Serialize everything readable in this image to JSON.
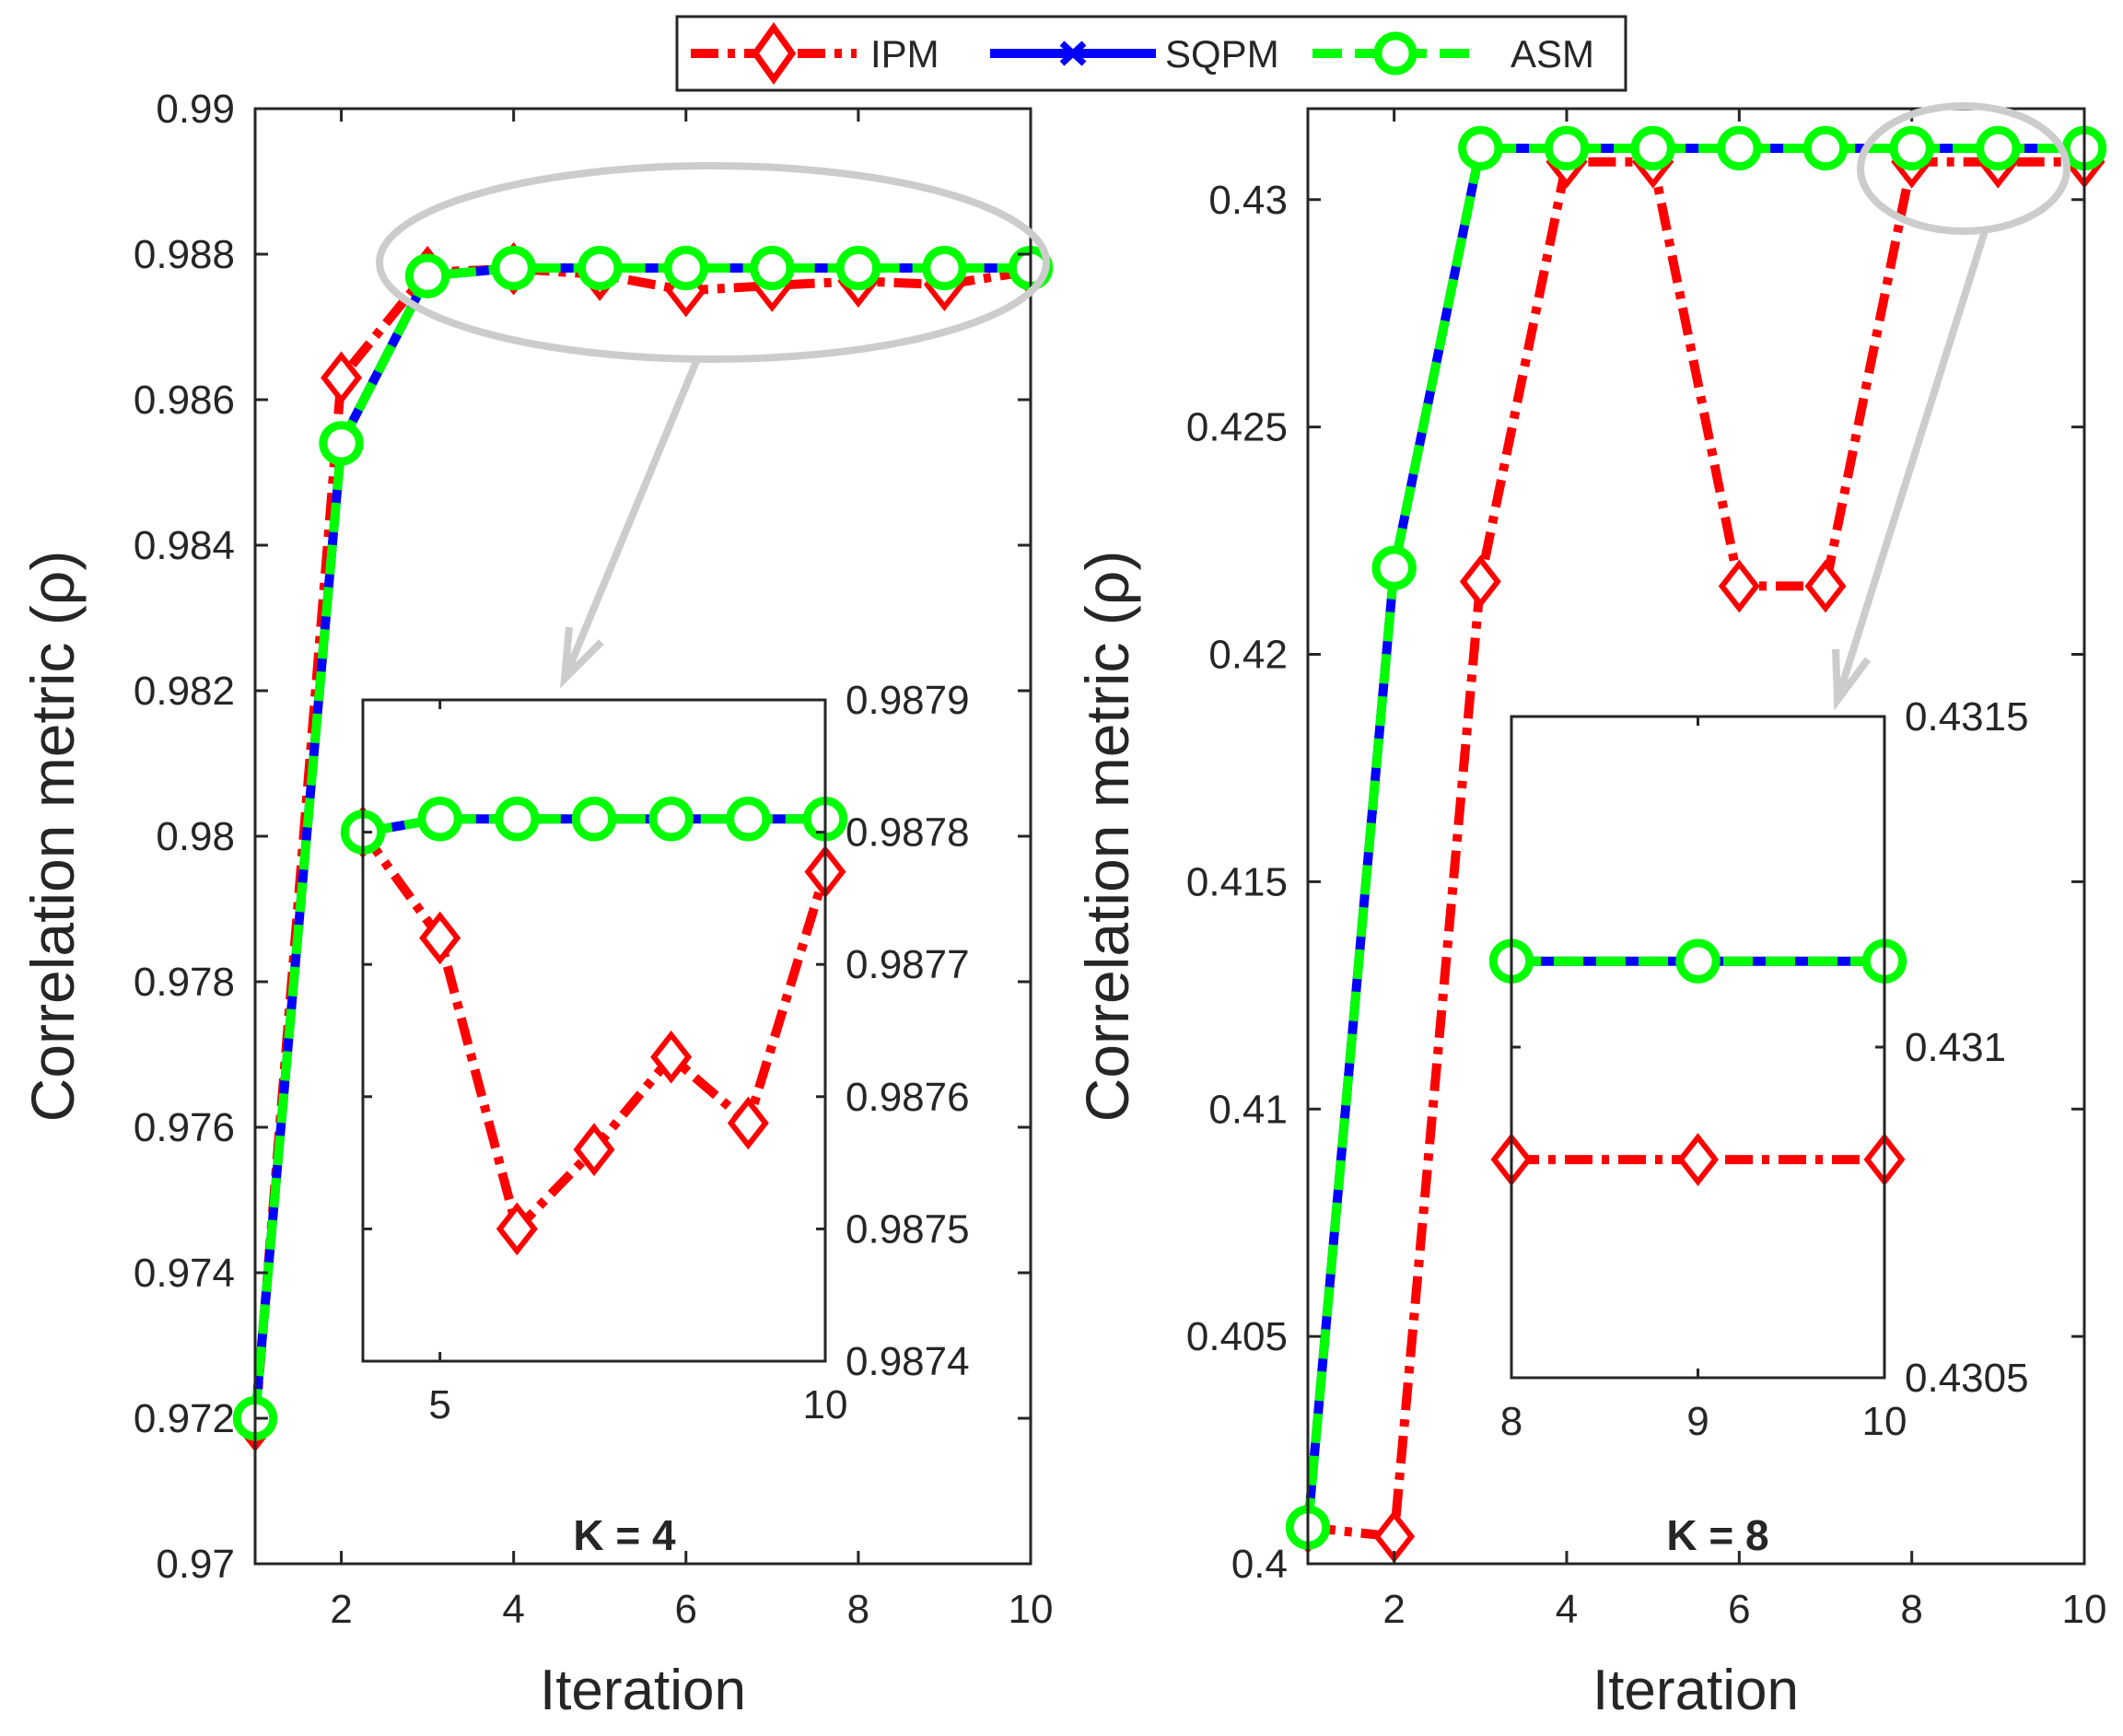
{
  "legend": {
    "placement": "top-center",
    "entries": [
      {
        "label": "IPM",
        "color": "#ff0000",
        "marker": "diamond",
        "dash": "dash-dot"
      },
      {
        "label": "SQPM",
        "color": "#0000ff",
        "marker": "x",
        "dash": "solid"
      },
      {
        "label": "ASM",
        "color": "#00ff00",
        "marker": "circle",
        "dash": "dashed"
      }
    ]
  },
  "highlight_color": "#cccccc",
  "chart_data": [
    {
      "type": "line",
      "title": "K = 4",
      "xlabel": "Iteration",
      "ylabel": "Correlation metric (ρ)",
      "xlim": [
        1,
        10
      ],
      "ylim": [
        0.97,
        0.99
      ],
      "xticks": [
        2,
        4,
        6,
        8,
        10
      ],
      "yticks": [
        0.97,
        0.972,
        0.974,
        0.976,
        0.978,
        0.98,
        0.982,
        0.984,
        0.986,
        0.988,
        0.99
      ],
      "ytick_labels": [
        "0.97",
        "0.972",
        "0.974",
        "0.976",
        "0.978",
        "0.98",
        "0.982",
        "0.984",
        "0.986",
        "0.988",
        "0.99"
      ],
      "grid": false,
      "x": [
        1,
        2,
        3,
        4,
        5,
        6,
        7,
        8,
        9,
        10
      ],
      "series": [
        {
          "name": "IPM",
          "values": [
            0.9719,
            0.9863,
            0.98775,
            0.9878,
            0.98772,
            0.9875,
            0.98757,
            0.98763,
            0.98758,
            0.98777
          ]
        },
        {
          "name": "SQPM",
          "values": [
            0.972,
            0.9854,
            0.9877,
            0.98781,
            0.98781,
            0.98781,
            0.98781,
            0.98781,
            0.98781,
            0.98781
          ]
        },
        {
          "name": "ASM",
          "values": [
            0.972,
            0.9854,
            0.9877,
            0.98781,
            0.98781,
            0.98781,
            0.98781,
            0.98781,
            0.98781,
            0.98781
          ]
        }
      ],
      "inset": {
        "xlim": [
          4,
          10
        ],
        "ylim": [
          0.9874,
          0.9879
        ],
        "xticks": [
          5,
          10
        ],
        "yticks": [
          0.9874,
          0.9875,
          0.9876,
          0.9877,
          0.9878,
          0.9879
        ],
        "ytick_labels": [
          "0.9874",
          "0.9875",
          "0.9876",
          "0.9877",
          "0.9878",
          "0.9879"
        ],
        "x": [
          4,
          5,
          6,
          7,
          8,
          9,
          10
        ],
        "series": [
          {
            "name": "IPM",
            "values": [
              0.9878,
              0.98772,
              0.9875,
              0.98756,
              0.98763,
              0.98758,
              0.98777
            ]
          },
          {
            "name": "SQPM",
            "values": [
              0.9878,
              0.98781,
              0.98781,
              0.98781,
              0.98781,
              0.98781,
              0.98781
            ]
          },
          {
            "name": "ASM",
            "values": [
              0.9878,
              0.98781,
              0.98781,
              0.98781,
              0.98781,
              0.98781,
              0.98781
            ]
          }
        ]
      }
    },
    {
      "type": "line",
      "title": "K = 8",
      "xlabel": "Iteration",
      "ylabel": "Correlation metric (ρ)",
      "xlim": [
        1,
        10
      ],
      "ylim": [
        0.4,
        0.432
      ],
      "xticks": [
        2,
        4,
        6,
        8,
        10
      ],
      "yticks": [
        0.4,
        0.405,
        0.41,
        0.415,
        0.42,
        0.425,
        0.43
      ],
      "ytick_labels": [
        "0.4",
        "0.405",
        "0.41",
        "0.415",
        "0.42",
        "0.425",
        "0.43"
      ],
      "grid": false,
      "x": [
        1,
        2,
        3,
        4,
        5,
        6,
        7,
        8,
        9,
        10
      ],
      "series": [
        {
          "name": "IPM",
          "values": [
            0.4008,
            0.4006,
            0.4216,
            0.43083,
            0.43083,
            0.4215,
            0.4215,
            0.43083,
            0.43083,
            0.43083
          ]
        },
        {
          "name": "SQPM",
          "values": [
            0.4008,
            0.4219,
            0.43113,
            0.43113,
            0.43113,
            0.43113,
            0.43113,
            0.43113,
            0.43113,
            0.43113
          ]
        },
        {
          "name": "ASM",
          "values": [
            0.4008,
            0.4219,
            0.43113,
            0.43113,
            0.43113,
            0.43113,
            0.43113,
            0.43113,
            0.43113,
            0.43113
          ]
        }
      ],
      "inset": {
        "xlim": [
          8,
          10
        ],
        "ylim": [
          0.4305,
          0.4315
        ],
        "xticks": [
          8,
          9,
          10
        ],
        "yticks": [
          0.4305,
          0.431,
          0.4315
        ],
        "ytick_labels": [
          "0.4305",
          "0.431",
          "0.4315"
        ],
        "x": [
          8,
          9,
          10
        ],
        "series": [
          {
            "name": "IPM",
            "values": [
              0.43083,
              0.43083,
              0.43083
            ]
          },
          {
            "name": "SQPM",
            "values": [
              0.43113,
              0.43113,
              0.43113
            ]
          },
          {
            "name": "ASM",
            "values": [
              0.43113,
              0.43113,
              0.43113
            ]
          }
        ]
      }
    }
  ]
}
